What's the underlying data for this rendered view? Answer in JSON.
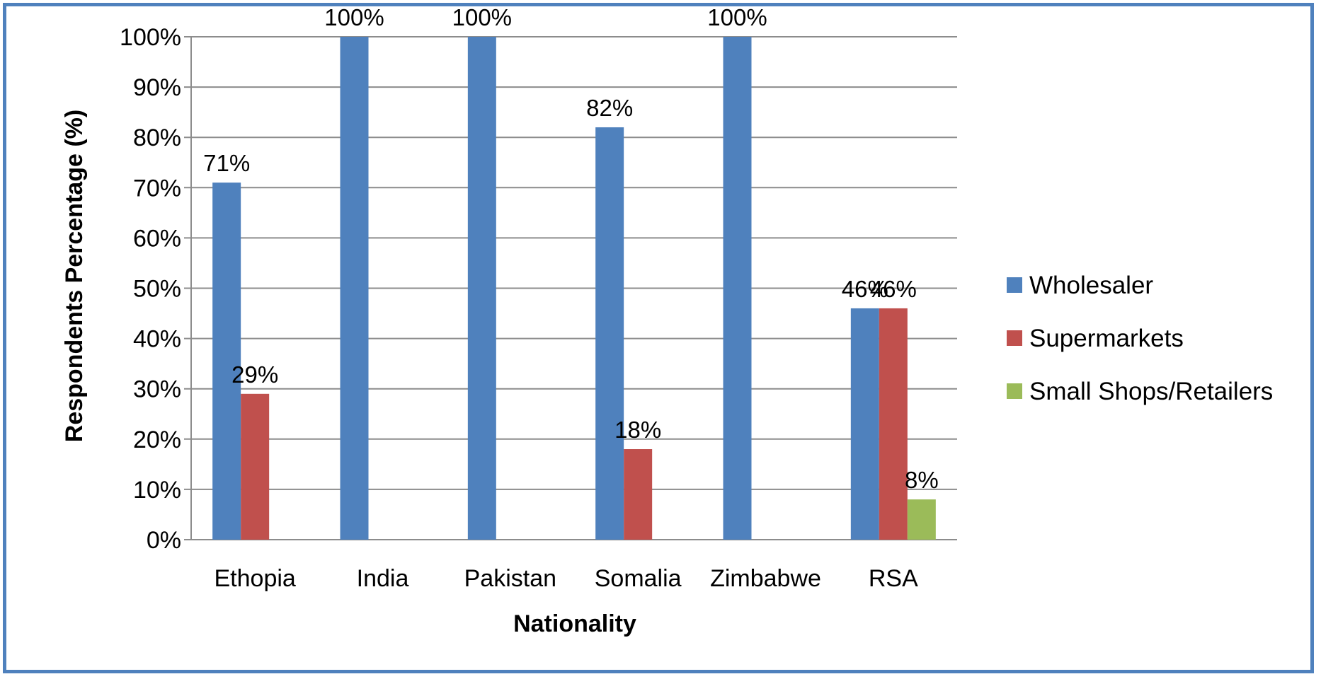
{
  "chart_data": {
    "type": "bar",
    "categories": [
      "Ethopia",
      "India",
      "Pakistan",
      "Somalia",
      "Zimbabwe",
      "RSA"
    ],
    "series": [
      {
        "name": "Wholesaler",
        "color": "#4f81bd",
        "values": [
          71,
          100,
          100,
          82,
          100,
          46
        ],
        "labels": [
          "71%",
          "100%",
          "100%",
          "82%",
          "100%",
          "46%"
        ]
      },
      {
        "name": "Supermarkets",
        "color": "#c0504d",
        "values": [
          29,
          0,
          0,
          18,
          0,
          46
        ],
        "labels": [
          "29%",
          "",
          "",
          "18%",
          "",
          "46%"
        ]
      },
      {
        "name": "Small Shops/Retailers",
        "color": "#9bbb59",
        "values": [
          0,
          0,
          0,
          0,
          0,
          8
        ],
        "labels": [
          "",
          "",
          "",
          "",
          "",
          "8%"
        ]
      }
    ],
    "ylim": [
      0,
      100
    ],
    "yticks": [
      "0%",
      "10%",
      "20%",
      "30%",
      "40%",
      "50%",
      "60%",
      "70%",
      "80%",
      "90%",
      "100%"
    ],
    "xlabel": "Nationality",
    "ylabel": "Respondents Percentage (%)",
    "grid": true,
    "legend_position": "right"
  }
}
